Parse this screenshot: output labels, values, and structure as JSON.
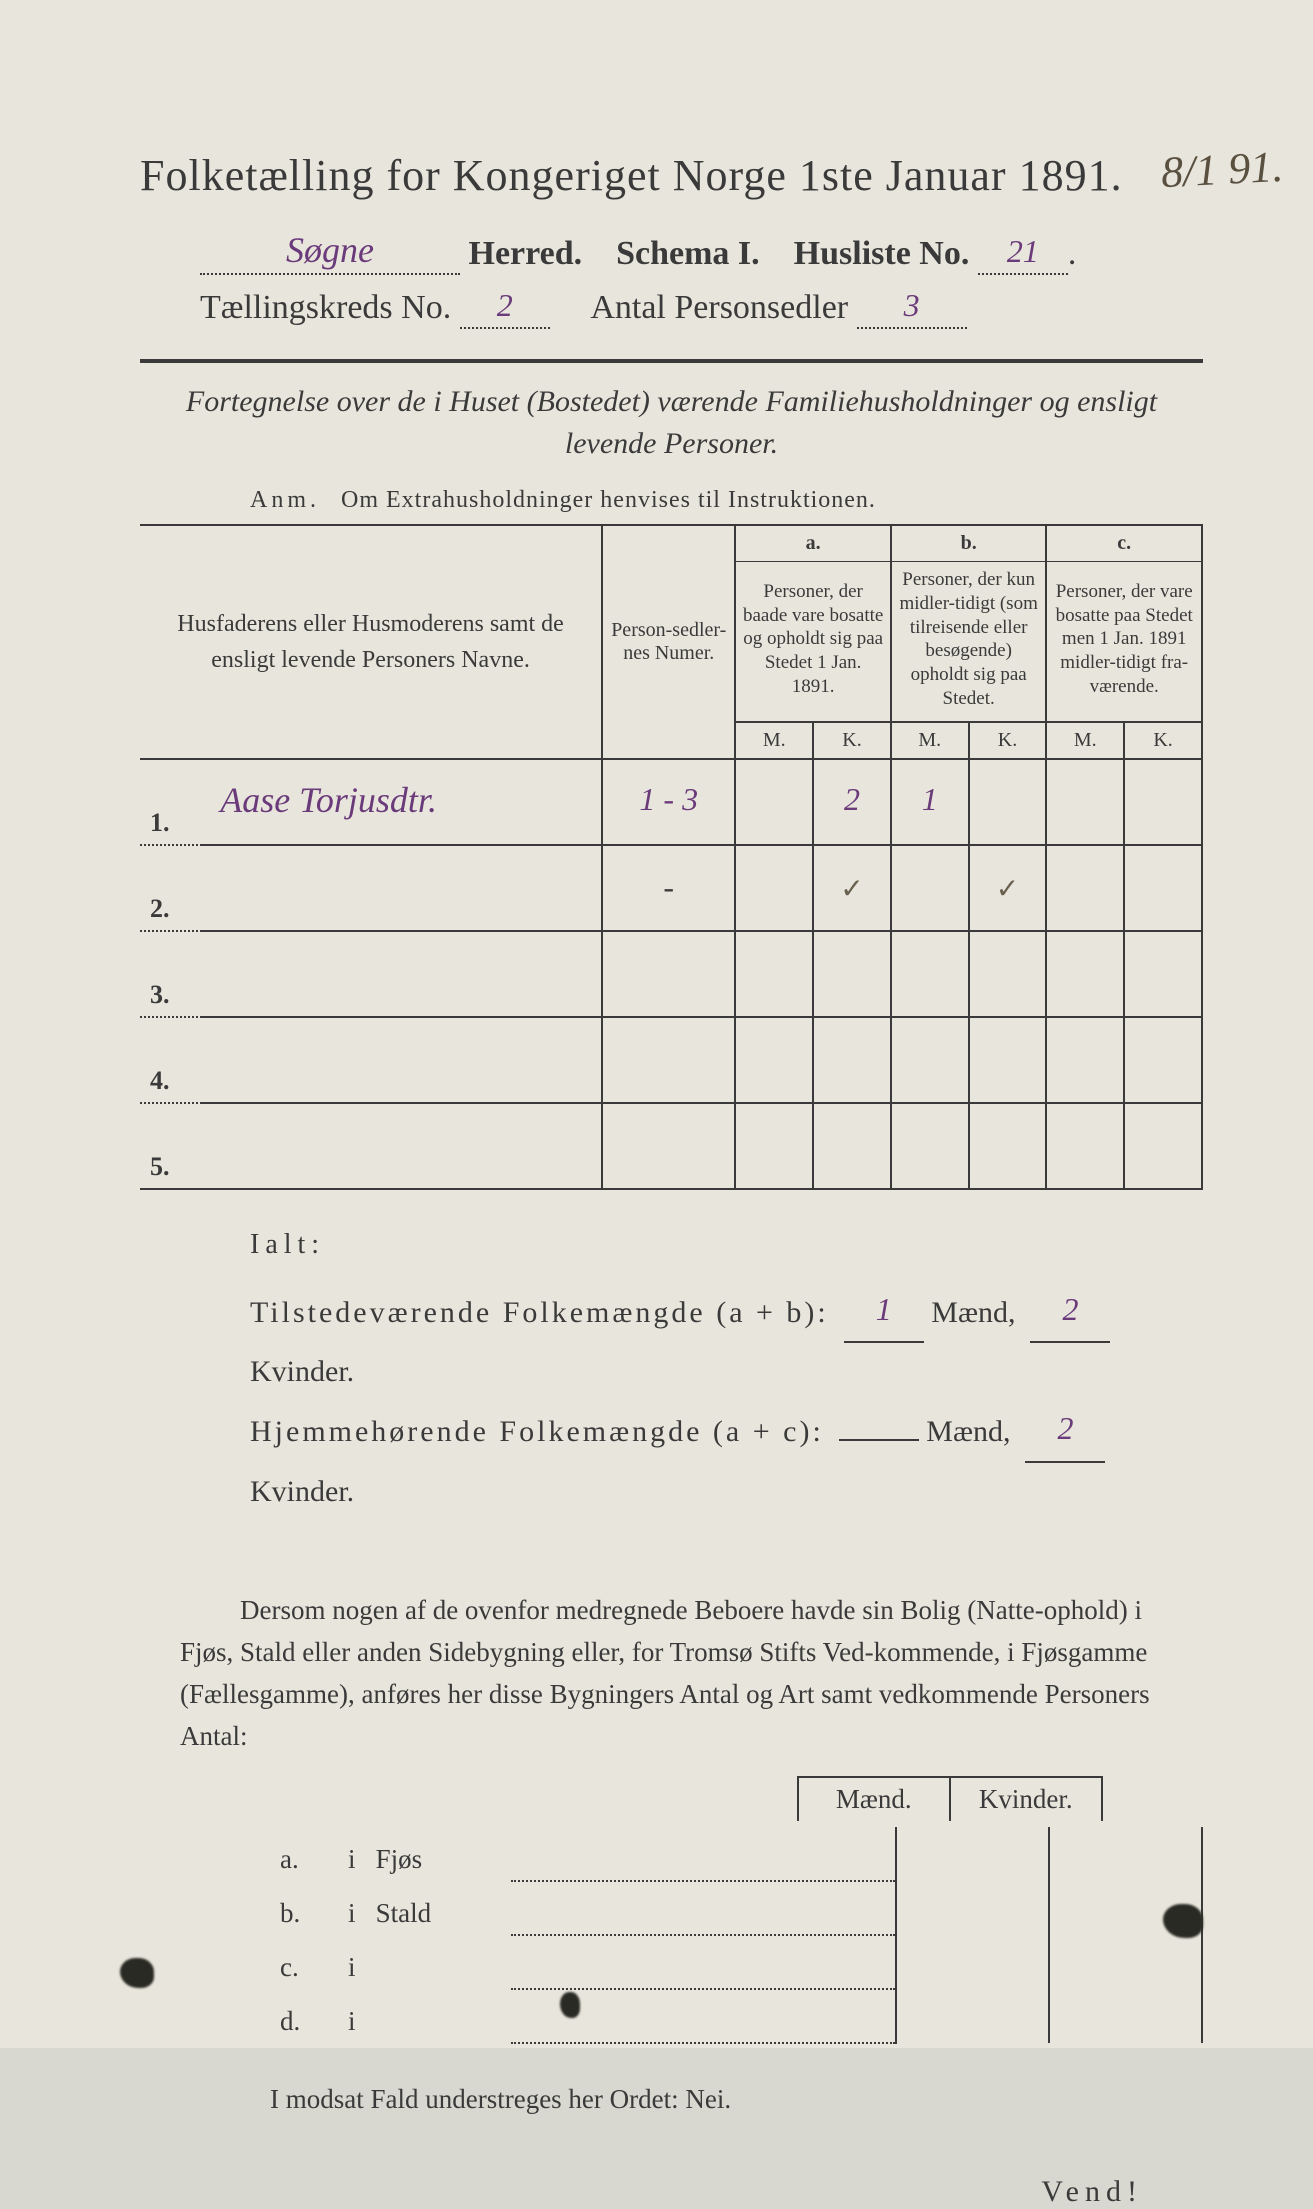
{
  "colors": {
    "paper": "#e8e6dc",
    "ink": "#3a3a3a",
    "handwritten": "#6a3a7a",
    "pencil": "#6a6050"
  },
  "margin_note": "8/1  91.",
  "title": "Folketælling for Kongeriget Norge 1ste Januar 1891.",
  "line2": {
    "herred_value": "Søgne",
    "herred_label": "Herred.",
    "schema_label": "Schema I.",
    "husliste_label": "Husliste No.",
    "husliste_value": "21"
  },
  "line3": {
    "kreds_label": "Tællingskreds No.",
    "kreds_value": "2",
    "antal_label": "Antal Personsedler",
    "antal_value": "3"
  },
  "subtitle": "Fortegnelse over de i Huset (Bostedet) værende Familiehusholdninger og ensligt levende Personer.",
  "anm_label": "Anm.",
  "anm_text": "Om Extrahusholdninger henvises til Instruktionen.",
  "table": {
    "col_name": "Husfaderens eller Husmoderens samt de ensligt levende Personers Navne.",
    "col_person": "Person-sedler-nes Numer.",
    "group_a_head": "a.",
    "group_a_text": "Personer, der baade vare bosatte og opholdt sig paa Stedet 1 Jan. 1891.",
    "group_b_head": "b.",
    "group_b_text": "Personer, der kun midler-tidigt (som tilreisende eller besøgende) opholdt sig paa Stedet.",
    "group_c_head": "c.",
    "group_c_text": "Personer, der vare bosatte paa Stedet men 1 Jan. 1891 midler-tidigt fra-værende.",
    "M": "M.",
    "K": "K.",
    "rows": [
      {
        "n": "1.",
        "name": "Aase Torjusdtr.",
        "person": "1 - 3",
        "aM": "",
        "aK": "2",
        "bM": "1",
        "bK": "",
        "cM": "",
        "cK": ""
      },
      {
        "n": "2.",
        "name": "",
        "person": "-",
        "aM": "",
        "aK": "✓",
        "bM": "",
        "bK": "✓",
        "cM": "",
        "cK": ""
      },
      {
        "n": "3.",
        "name": "",
        "person": "",
        "aM": "",
        "aK": "",
        "bM": "",
        "bK": "",
        "cM": "",
        "cK": ""
      },
      {
        "n": "4.",
        "name": "",
        "person": "",
        "aM": "",
        "aK": "",
        "bM": "",
        "bK": "",
        "cM": "",
        "cK": ""
      },
      {
        "n": "5.",
        "name": "",
        "person": "",
        "aM": "",
        "aK": "",
        "bM": "",
        "bK": "",
        "cM": "",
        "cK": ""
      }
    ]
  },
  "totals": {
    "ialt": "Ialt:",
    "line1_label": "Tilstedeværende Folkemængde (a + b):",
    "line1_m": "1",
    "line1_k": "2",
    "line2_label": "Hjemmehørende Folkemængde (a + c):",
    "line2_m": "",
    "line2_k": "2",
    "maend": "Mænd,",
    "kvinder": "Kvinder."
  },
  "paragraph": "Dersom nogen af de ovenfor medregnede Beboere havde sin Bolig (Natte-ophold) i Fjøs, Stald eller anden Sidebygning eller, for Tromsø Stifts Ved-kommende, i Fjøsgamme (Fællesgamme), anføres her disse Bygningers Antal og Art samt vedkommende Personers Antal:",
  "loc_head_m": "Mænd.",
  "loc_head_k": "Kvinder.",
  "loc_rows": [
    {
      "lab": "a.",
      "i": "i",
      "word": "Fjøs"
    },
    {
      "lab": "b.",
      "i": "i",
      "word": "Stald"
    },
    {
      "lab": "c.",
      "i": "i",
      "word": ""
    },
    {
      "lab": "d.",
      "i": "i",
      "word": ""
    }
  ],
  "nei": "I modsat Fald understreges her Ordet: Nei.",
  "vend": "Vend!"
}
